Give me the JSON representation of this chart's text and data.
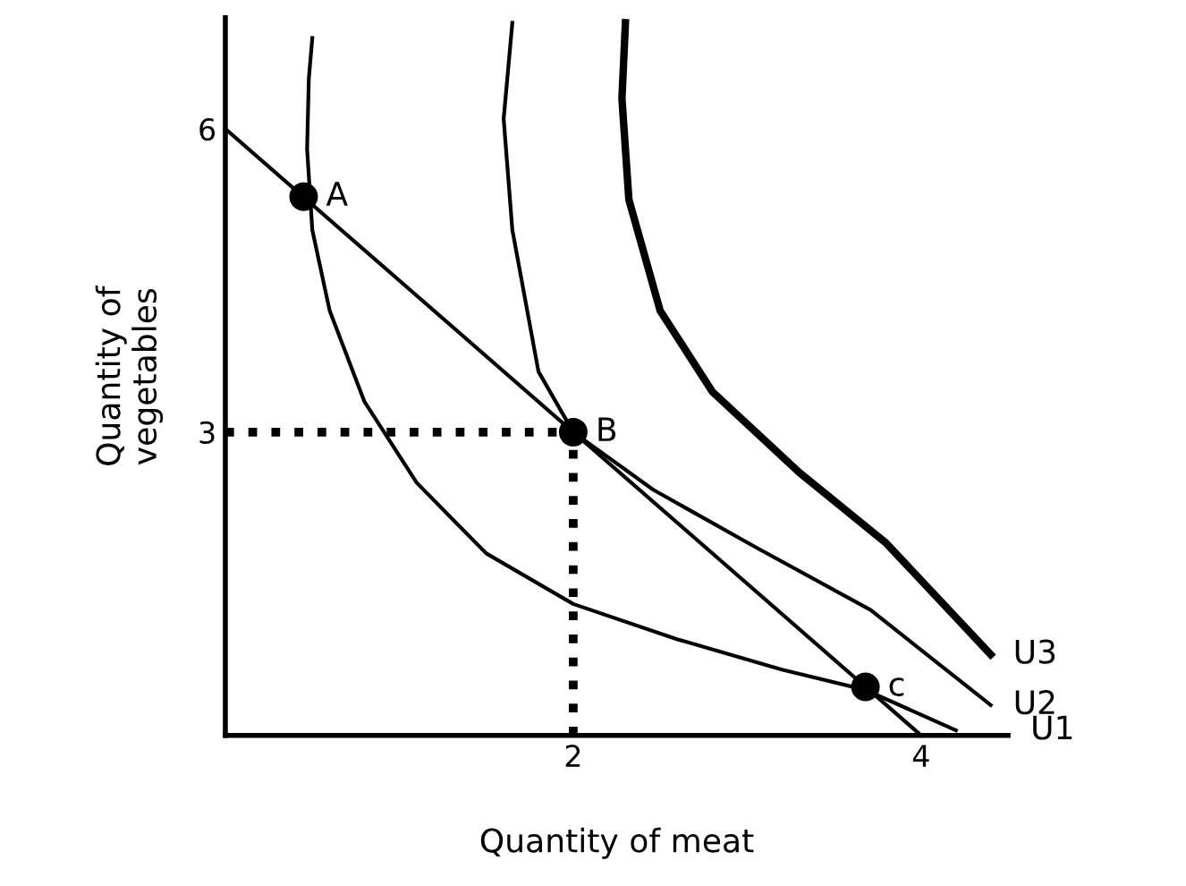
{
  "chart_data": {
    "type": "line",
    "xlabel": "Quantity of meat",
    "ylabel": "Quantity of\nvegetables",
    "xlim": [
      0,
      4.5
    ],
    "ylim": [
      0,
      7.1
    ],
    "xticks": [
      2,
      4
    ],
    "yticks": [
      3,
      6
    ],
    "grid": false,
    "legend": false,
    "series": [
      {
        "color": "#000000",
        "line_style": "solid",
        "x": [
          0,
          4
        ],
        "values": [
          6,
          0
        ]
      },
      {
        "color": "#000000",
        "line_style": "solid",
        "x": [
          0.5,
          0.48,
          0.47,
          0.5,
          0.6,
          0.8,
          1.1,
          1.5,
          2.0,
          2.6,
          3.2,
          3.68,
          4.2
        ],
        "values": [
          6.9,
          6.5,
          5.8,
          5.0,
          4.2,
          3.3,
          2.5,
          1.8,
          1.3,
          0.95,
          0.65,
          0.45,
          0.05
        ]
      },
      {
        "color": "#000000",
        "line_style": "solid",
        "x": [
          1.65,
          1.6,
          1.65,
          1.8,
          2.0,
          2.46,
          3.04,
          3.71,
          4.4
        ],
        "values": [
          7.05,
          6.1,
          5.0,
          3.6,
          3.0,
          2.43,
          1.87,
          1.24,
          0.3
        ]
      },
      {
        "color": "#000000",
        "line_style": "solid",
        "x": [
          2.3,
          2.28,
          2.32,
          2.5,
          2.8,
          3.3,
          3.8,
          4.4
        ],
        "values": [
          7.05,
          6.3,
          5.3,
          4.2,
          3.4,
          2.6,
          1.9,
          0.8
        ]
      },
      {
        "color": "#000000",
        "line_style": "dotted",
        "x": [
          0,
          2
        ],
        "values": [
          3,
          3
        ]
      },
      {
        "color": "#000000",
        "line_style": "dotted",
        "x": [
          2,
          2
        ],
        "values": [
          0,
          3
        ]
      },
      {
        "type": "scatter",
        "color": "#000000",
        "marker": "circle",
        "x": [
          0.45,
          2,
          3.68
        ],
        "values": [
          5.33,
          3,
          0.48
        ]
      }
    ],
    "annotations": [
      {
        "text": "A",
        "x": 0.45,
        "y": 5.33
      },
      {
        "text": "B",
        "x": 2,
        "y": 3
      },
      {
        "text": "c",
        "x": 3.68,
        "y": 0.48
      },
      {
        "text": "U1",
        "x": 4.2,
        "y": 0.05
      },
      {
        "text": "U2",
        "x": 4.4,
        "y": 0.3
      },
      {
        "text": "U3",
        "x": 4.4,
        "y": 0.8
      }
    ]
  }
}
